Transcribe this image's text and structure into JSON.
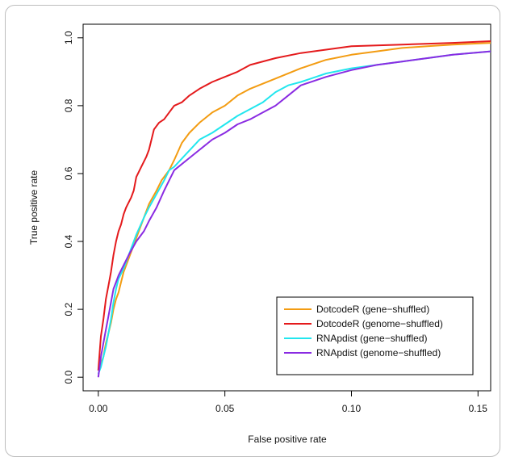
{
  "chart_data": {
    "type": "line",
    "title": "",
    "xlabel": "False positive rate",
    "ylabel": "True positive rate",
    "xlim": [
      -0.006,
      0.155
    ],
    "ylim": [
      -0.04,
      1.04
    ],
    "xticks": [
      0.0,
      0.05,
      0.1,
      0.15
    ],
    "xtick_labels": [
      "0.00",
      "0.05",
      "0.10",
      "0.15"
    ],
    "yticks": [
      0.0,
      0.2,
      0.4,
      0.6,
      0.8,
      1.0
    ],
    "ytick_labels": [
      "0.0",
      "0.2",
      "0.4",
      "0.6",
      "0.8",
      "1.0"
    ],
    "grid": false,
    "legend_position": "bottom-right",
    "series": [
      {
        "name": "DotcodeR (gene−shuffled)",
        "color": "#f39c12",
        "points": [
          [
            0,
            0.02
          ],
          [
            0.001,
            0.04
          ],
          [
            0.002,
            0.06
          ],
          [
            0.003,
            0.1
          ],
          [
            0.004,
            0.13
          ],
          [
            0.005,
            0.16
          ],
          [
            0.006,
            0.2
          ],
          [
            0.007,
            0.23
          ],
          [
            0.008,
            0.25
          ],
          [
            0.009,
            0.28
          ],
          [
            0.01,
            0.31
          ],
          [
            0.012,
            0.35
          ],
          [
            0.015,
            0.41
          ],
          [
            0.018,
            0.47
          ],
          [
            0.02,
            0.51
          ],
          [
            0.023,
            0.55
          ],
          [
            0.025,
            0.58
          ],
          [
            0.028,
            0.61
          ],
          [
            0.03,
            0.64
          ],
          [
            0.033,
            0.69
          ],
          [
            0.036,
            0.72
          ],
          [
            0.04,
            0.75
          ],
          [
            0.045,
            0.78
          ],
          [
            0.05,
            0.8
          ],
          [
            0.055,
            0.83
          ],
          [
            0.06,
            0.85
          ],
          [
            0.07,
            0.88
          ],
          [
            0.08,
            0.91
          ],
          [
            0.09,
            0.935
          ],
          [
            0.1,
            0.95
          ],
          [
            0.11,
            0.96
          ],
          [
            0.12,
            0.97
          ],
          [
            0.13,
            0.975
          ],
          [
            0.14,
            0.98
          ],
          [
            0.155,
            0.985
          ]
        ]
      },
      {
        "name": "DotcodeR (genome−shuffled)",
        "color": "#e41a1c",
        "points": [
          [
            0,
            0.02
          ],
          [
            0.0005,
            0.07
          ],
          [
            0.001,
            0.12
          ],
          [
            0.002,
            0.17
          ],
          [
            0.003,
            0.23
          ],
          [
            0.004,
            0.27
          ],
          [
            0.005,
            0.31
          ],
          [
            0.006,
            0.36
          ],
          [
            0.007,
            0.4
          ],
          [
            0.008,
            0.43
          ],
          [
            0.009,
            0.45
          ],
          [
            0.01,
            0.48
          ],
          [
            0.011,
            0.5
          ],
          [
            0.013,
            0.53
          ],
          [
            0.014,
            0.55
          ],
          [
            0.015,
            0.59
          ],
          [
            0.017,
            0.62
          ],
          [
            0.019,
            0.65
          ],
          [
            0.02,
            0.67
          ],
          [
            0.021,
            0.7
          ],
          [
            0.022,
            0.73
          ],
          [
            0.024,
            0.75
          ],
          [
            0.026,
            0.76
          ],
          [
            0.028,
            0.78
          ],
          [
            0.03,
            0.8
          ],
          [
            0.033,
            0.81
          ],
          [
            0.036,
            0.83
          ],
          [
            0.04,
            0.85
          ],
          [
            0.045,
            0.87
          ],
          [
            0.05,
            0.885
          ],
          [
            0.055,
            0.9
          ],
          [
            0.06,
            0.92
          ],
          [
            0.07,
            0.94
          ],
          [
            0.08,
            0.955
          ],
          [
            0.09,
            0.965
          ],
          [
            0.1,
            0.975
          ],
          [
            0.12,
            0.98
          ],
          [
            0.14,
            0.985
          ],
          [
            0.155,
            0.99
          ]
        ]
      },
      {
        "name": "RNApdist (gene−shuffled)",
        "color": "#22e6ee",
        "points": [
          [
            0,
            0.01
          ],
          [
            0.001,
            0.03
          ],
          [
            0.002,
            0.06
          ],
          [
            0.003,
            0.09
          ],
          [
            0.004,
            0.13
          ],
          [
            0.005,
            0.17
          ],
          [
            0.006,
            0.22
          ],
          [
            0.007,
            0.26
          ],
          [
            0.008,
            0.29
          ],
          [
            0.01,
            0.32
          ],
          [
            0.012,
            0.36
          ],
          [
            0.015,
            0.42
          ],
          [
            0.018,
            0.47
          ],
          [
            0.02,
            0.5
          ],
          [
            0.023,
            0.54
          ],
          [
            0.026,
            0.58
          ],
          [
            0.028,
            0.61
          ],
          [
            0.03,
            0.62
          ],
          [
            0.035,
            0.66
          ],
          [
            0.04,
            0.7
          ],
          [
            0.045,
            0.72
          ],
          [
            0.05,
            0.745
          ],
          [
            0.055,
            0.77
          ],
          [
            0.06,
            0.79
          ],
          [
            0.065,
            0.81
          ],
          [
            0.07,
            0.84
          ],
          [
            0.075,
            0.86
          ],
          [
            0.08,
            0.87
          ],
          [
            0.09,
            0.895
          ],
          [
            0.1,
            0.91
          ],
          [
            0.11,
            0.92
          ],
          [
            0.12,
            0.93
          ],
          [
            0.13,
            0.94
          ],
          [
            0.14,
            0.95
          ],
          [
            0.155,
            0.96
          ]
        ]
      },
      {
        "name": "RNApdist (genome−shuffled)",
        "color": "#8a2be2",
        "points": [
          [
            0,
            0.0
          ],
          [
            0.0005,
            0.03
          ],
          [
            0.001,
            0.06
          ],
          [
            0.002,
            0.1
          ],
          [
            0.003,
            0.14
          ],
          [
            0.004,
            0.18
          ],
          [
            0.005,
            0.22
          ],
          [
            0.006,
            0.26
          ],
          [
            0.007,
            0.28
          ],
          [
            0.008,
            0.3
          ],
          [
            0.01,
            0.33
          ],
          [
            0.012,
            0.36
          ],
          [
            0.015,
            0.4
          ],
          [
            0.018,
            0.43
          ],
          [
            0.02,
            0.46
          ],
          [
            0.023,
            0.5
          ],
          [
            0.026,
            0.55
          ],
          [
            0.028,
            0.58
          ],
          [
            0.03,
            0.61
          ],
          [
            0.035,
            0.64
          ],
          [
            0.04,
            0.67
          ],
          [
            0.045,
            0.7
          ],
          [
            0.05,
            0.72
          ],
          [
            0.055,
            0.745
          ],
          [
            0.06,
            0.76
          ],
          [
            0.065,
            0.78
          ],
          [
            0.07,
            0.8
          ],
          [
            0.075,
            0.83
          ],
          [
            0.08,
            0.86
          ],
          [
            0.09,
            0.885
          ],
          [
            0.1,
            0.905
          ],
          [
            0.11,
            0.92
          ],
          [
            0.12,
            0.93
          ],
          [
            0.13,
            0.94
          ],
          [
            0.14,
            0.95
          ],
          [
            0.155,
            0.96
          ]
        ]
      }
    ]
  }
}
